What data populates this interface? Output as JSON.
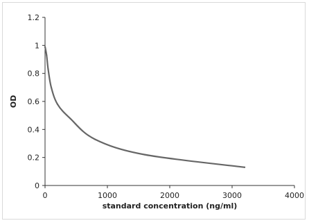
{
  "chart_data": {
    "type": "line",
    "title": "",
    "xlabel": "standard concentration (ng/ml)",
    "ylabel": "OD",
    "xlim": [
      0,
      4000
    ],
    "ylim": [
      0,
      1.2
    ],
    "x_ticks": [
      0,
      1000,
      2000,
      3000,
      4000
    ],
    "y_ticks": [
      0,
      0.2,
      0.4,
      0.6,
      0.8,
      1,
      1.2
    ],
    "x_tick_labels": [
      "0",
      "1000",
      "2000",
      "3000",
      "4000"
    ],
    "y_tick_labels": [
      "0",
      "0.2",
      "0.4",
      "0.6",
      "0.8",
      "1",
      "1.2"
    ],
    "grid": false,
    "legend": "none",
    "series": [
      {
        "color": "#666666",
        "x": [
          0,
          25,
          50,
          100,
          200,
          400,
          800,
          1600,
          3200
        ],
        "y": [
          0.99,
          0.93,
          0.83,
          0.7,
          0.58,
          0.48,
          0.33,
          0.22,
          0.13
        ]
      }
    ]
  }
}
